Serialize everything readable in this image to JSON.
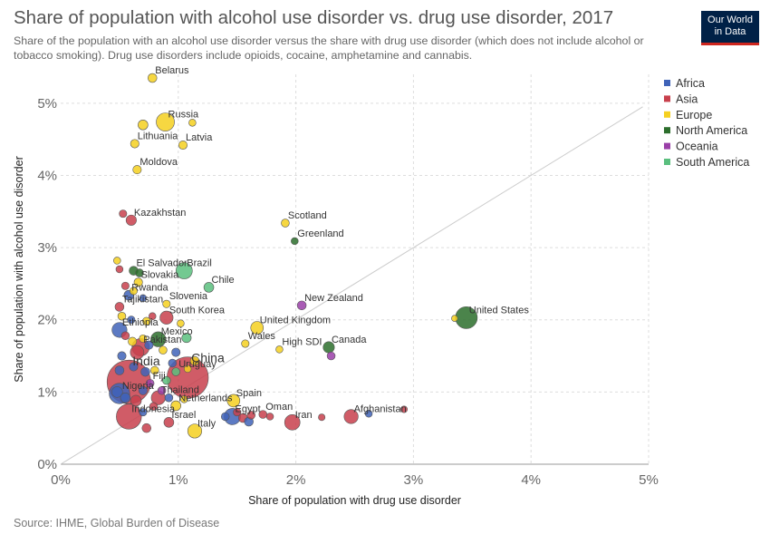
{
  "header": {
    "title": "Share of population with alcohol use disorder vs. drug use disorder, 2017",
    "subtitle": "Share of the population with an alcohol use disorder versus the share with drug use disorder (which does not include alcohol or tobacco smoking). Drug use disorders include opioids, cocaine, amphetamine and cannabis."
  },
  "logo": {
    "line1": "Our World",
    "line2": "in Data"
  },
  "footer": {
    "source": "Source: IHME, Global Burden of Disease"
  },
  "colors": {
    "Africa": "#3f63b8",
    "Asia": "#c8404c",
    "Europe": "#f5d020",
    "North America": "#2c6e2c",
    "Oceania": "#9a3fa8",
    "South America": "#5abf7e"
  },
  "chart_data": {
    "type": "scatter",
    "title": "Share of population with alcohol use disorder vs. drug use disorder, 2017",
    "xlabel": "Share of population with drug use disorder",
    "ylabel": "Share of population with alcohol use disorder",
    "xlim": [
      0,
      5
    ],
    "ylim": [
      0,
      5.4
    ],
    "xticks": [
      "0%",
      "1%",
      "2%",
      "3%",
      "4%",
      "5%"
    ],
    "yticks": [
      "0%",
      "1%",
      "2%",
      "3%",
      "4%",
      "5%"
    ],
    "grid": true,
    "reference_line": "y = x",
    "legend": {
      "position": "right",
      "entries": [
        "Africa",
        "Asia",
        "Europe",
        "North America",
        "Oceania",
        "South America"
      ]
    },
    "points": [
      {
        "label": "Belarus",
        "x": 0.78,
        "y": 5.35,
        "continent": "Europe",
        "size": 1
      },
      {
        "label": "Russia",
        "x": 0.89,
        "y": 4.74,
        "continent": "Europe",
        "size": 3
      },
      {
        "label": "",
        "x": 0.7,
        "y": 4.7,
        "continent": "Europe",
        "size": 1.2
      },
      {
        "label": "",
        "x": 1.12,
        "y": 4.73,
        "continent": "Europe",
        "size": 0.6
      },
      {
        "label": "Lithuania",
        "x": 0.63,
        "y": 4.44,
        "continent": "Europe",
        "size": 0.9
      },
      {
        "label": "Latvia",
        "x": 1.04,
        "y": 4.42,
        "continent": "Europe",
        "size": 0.9
      },
      {
        "label": "Moldova",
        "x": 0.65,
        "y": 4.08,
        "continent": "Europe",
        "size": 0.9
      },
      {
        "label": "Kazakhstan",
        "x": 0.6,
        "y": 3.38,
        "continent": "Asia",
        "size": 1.3
      },
      {
        "label": "",
        "x": 0.53,
        "y": 3.47,
        "continent": "Asia",
        "size": 0.7
      },
      {
        "label": "Scotland",
        "x": 1.91,
        "y": 3.34,
        "continent": "Europe",
        "size": 0.8
      },
      {
        "label": "Greenland",
        "x": 1.99,
        "y": 3.09,
        "continent": "North America",
        "size": 0.6
      },
      {
        "label": "Brazil",
        "x": 1.05,
        "y": 2.68,
        "continent": "South America",
        "size": 2.6
      },
      {
        "label": "El Salvador",
        "x": 0.62,
        "y": 2.68,
        "continent": "North America",
        "size": 1
      },
      {
        "label": "Slovakia",
        "x": 0.66,
        "y": 2.52,
        "continent": "Europe",
        "size": 0.9
      },
      {
        "label": "Chile",
        "x": 1.26,
        "y": 2.45,
        "continent": "South America",
        "size": 1.2
      },
      {
        "label": "Rwanda",
        "x": 0.58,
        "y": 2.34,
        "continent": "Africa",
        "size": 1.2
      },
      {
        "label": "Slovenia",
        "x": 0.9,
        "y": 2.22,
        "continent": "Europe",
        "size": 0.7
      },
      {
        "label": "New Zealand",
        "x": 2.05,
        "y": 2.2,
        "continent": "Oceania",
        "size": 1
      },
      {
        "label": "Tajikistan",
        "x": 0.5,
        "y": 2.18,
        "continent": "Asia",
        "size": 1
      },
      {
        "label": "South Korea",
        "x": 0.9,
        "y": 2.03,
        "continent": "Asia",
        "size": 1.9
      },
      {
        "label": "United States",
        "x": 3.45,
        "y": 2.03,
        "continent": "North America",
        "size": 3.8
      },
      {
        "label": "",
        "x": 3.35,
        "y": 2.02,
        "continent": "Europe",
        "size": 0.4
      },
      {
        "label": "Ethiopia",
        "x": 0.5,
        "y": 1.86,
        "continent": "Africa",
        "size": 2.3
      },
      {
        "label": "United Kingdom",
        "x": 1.67,
        "y": 1.89,
        "continent": "Europe",
        "size": 1.8
      },
      {
        "label": "Mexico",
        "x": 0.83,
        "y": 1.73,
        "continent": "North America",
        "size": 2.3
      },
      {
        "label": "Wales",
        "x": 1.57,
        "y": 1.67,
        "continent": "Europe",
        "size": 0.7
      },
      {
        "label": "Pakistan",
        "x": 0.68,
        "y": 1.62,
        "continent": "Asia",
        "size": 2.8
      },
      {
        "label": "Canada",
        "x": 2.28,
        "y": 1.62,
        "continent": "North America",
        "size": 1.5
      },
      {
        "label": "High SDI",
        "x": 1.86,
        "y": 1.59,
        "continent": "Europe",
        "size": 0.6
      },
      {
        "label": "",
        "x": 2.3,
        "y": 1.5,
        "continent": "Oceania",
        "size": 0.8
      },
      {
        "label": "",
        "x": 0.65,
        "y": 1.55,
        "continent": "Asia",
        "size": 2
      },
      {
        "label": "",
        "x": 0.98,
        "y": 1.55,
        "continent": "Africa",
        "size": 0.9
      },
      {
        "label": "India",
        "x": 0.58,
        "y": 1.14,
        "continent": "Asia",
        "size": 8.5
      },
      {
        "label": "China",
        "x": 1.08,
        "y": 1.2,
        "continent": "Asia",
        "size": 8
      },
      {
        "label": "Uruguay",
        "x": 0.98,
        "y": 1.28,
        "continent": "South America",
        "size": 0.8
      },
      {
        "label": "Fiji",
        "x": 0.76,
        "y": 1.12,
        "continent": "Oceania",
        "size": 0.8
      },
      {
        "label": "Nigeria",
        "x": 0.5,
        "y": 0.98,
        "continent": "Africa",
        "size": 3.5
      },
      {
        "label": "Thailand",
        "x": 0.83,
        "y": 0.92,
        "continent": "Asia",
        "size": 2.1
      },
      {
        "label": "Spain",
        "x": 1.47,
        "y": 0.88,
        "continent": "Europe",
        "size": 1.8
      },
      {
        "label": "Netherlands",
        "x": 0.98,
        "y": 0.81,
        "continent": "Europe",
        "size": 1.2
      },
      {
        "label": "Indonesia",
        "x": 0.58,
        "y": 0.66,
        "continent": "Asia",
        "size": 4.5
      },
      {
        "label": "Egypt",
        "x": 1.46,
        "y": 0.66,
        "continent": "Africa",
        "size": 2.6
      },
      {
        "label": "Oman",
        "x": 1.72,
        "y": 0.69,
        "continent": "Asia",
        "size": 0.8
      },
      {
        "label": "Iran",
        "x": 1.97,
        "y": 0.58,
        "continent": "Asia",
        "size": 2.4
      },
      {
        "label": "Afghanistan",
        "x": 2.47,
        "y": 0.66,
        "continent": "Asia",
        "size": 2.1
      },
      {
        "label": "",
        "x": 2.92,
        "y": 0.76,
        "continent": "Asia",
        "size": 0.5
      },
      {
        "label": "Israel",
        "x": 0.92,
        "y": 0.58,
        "continent": "Asia",
        "size": 1.2
      },
      {
        "label": "Italy",
        "x": 1.14,
        "y": 0.46,
        "continent": "Europe",
        "size": 2.1
      },
      {
        "label": "",
        "x": 0.73,
        "y": 0.5,
        "continent": "Asia",
        "size": 1
      },
      {
        "label": "",
        "x": 0.48,
        "y": 2.82,
        "continent": "Europe",
        "size": 0.6
      },
      {
        "label": "",
        "x": 0.5,
        "y": 2.7,
        "continent": "Asia",
        "size": 0.6
      },
      {
        "label": "",
        "x": 0.67,
        "y": 2.65,
        "continent": "North America",
        "size": 0.8
      },
      {
        "label": "",
        "x": 0.55,
        "y": 2.47,
        "continent": "Asia",
        "size": 0.7
      },
      {
        "label": "",
        "x": 0.62,
        "y": 2.4,
        "continent": "Europe",
        "size": 0.7
      },
      {
        "label": "",
        "x": 0.7,
        "y": 2.3,
        "continent": "Africa",
        "size": 0.6
      },
      {
        "label": "",
        "x": 0.52,
        "y": 2.05,
        "continent": "Europe",
        "size": 0.8
      },
      {
        "label": "",
        "x": 0.73,
        "y": 1.98,
        "continent": "Europe",
        "size": 0.8
      },
      {
        "label": "",
        "x": 0.6,
        "y": 2.0,
        "continent": "Africa",
        "size": 0.7
      },
      {
        "label": "",
        "x": 0.78,
        "y": 2.05,
        "continent": "Asia",
        "size": 0.6
      },
      {
        "label": "",
        "x": 0.55,
        "y": 1.78,
        "continent": "Asia",
        "size": 0.8
      },
      {
        "label": "",
        "x": 0.61,
        "y": 1.7,
        "continent": "Europe",
        "size": 0.9
      },
      {
        "label": "",
        "x": 0.7,
        "y": 1.74,
        "continent": "Europe",
        "size": 0.7
      },
      {
        "label": "",
        "x": 0.75,
        "y": 1.65,
        "continent": "Africa",
        "size": 0.9
      },
      {
        "label": "",
        "x": 0.87,
        "y": 1.58,
        "continent": "Europe",
        "size": 0.8
      },
      {
        "label": "",
        "x": 1.07,
        "y": 1.75,
        "continent": "South America",
        "size": 1.1
      },
      {
        "label": "",
        "x": 1.02,
        "y": 1.95,
        "continent": "Europe",
        "size": 0.6
      },
      {
        "label": "",
        "x": 1.14,
        "y": 1.43,
        "continent": "Europe",
        "size": 1
      },
      {
        "label": "",
        "x": 0.95,
        "y": 1.4,
        "continent": "Africa",
        "size": 0.8
      },
      {
        "label": "",
        "x": 0.52,
        "y": 1.5,
        "continent": "Africa",
        "size": 0.9
      },
      {
        "label": "",
        "x": 0.5,
        "y": 1.3,
        "continent": "Africa",
        "size": 1
      },
      {
        "label": "",
        "x": 0.62,
        "y": 1.35,
        "continent": "Africa",
        "size": 0.9
      },
      {
        "label": "",
        "x": 0.72,
        "y": 1.28,
        "continent": "Africa",
        "size": 1
      },
      {
        "label": "",
        "x": 0.8,
        "y": 1.3,
        "continent": "Europe",
        "size": 0.8
      },
      {
        "label": "",
        "x": 0.9,
        "y": 1.16,
        "continent": "South America",
        "size": 0.8
      },
      {
        "label": "",
        "x": 0.48,
        "y": 1.0,
        "continent": "Africa",
        "size": 1.4
      },
      {
        "label": "",
        "x": 0.55,
        "y": 0.92,
        "continent": "Africa",
        "size": 1.2
      },
      {
        "label": "",
        "x": 0.64,
        "y": 0.88,
        "continent": "Asia",
        "size": 1.4
      },
      {
        "label": "",
        "x": 0.7,
        "y": 1.02,
        "continent": "Africa",
        "size": 0.9
      },
      {
        "label": "",
        "x": 0.86,
        "y": 1.02,
        "continent": "Oceania",
        "size": 0.8
      },
      {
        "label": "",
        "x": 0.92,
        "y": 0.92,
        "continent": "Africa",
        "size": 0.8
      },
      {
        "label": "",
        "x": 0.79,
        "y": 0.8,
        "continent": "Asia",
        "size": 0.8
      },
      {
        "label": "",
        "x": 0.7,
        "y": 0.72,
        "continent": "Africa",
        "size": 0.7
      },
      {
        "label": "",
        "x": 1.4,
        "y": 0.66,
        "continent": "Africa",
        "size": 0.8
      },
      {
        "label": "",
        "x": 1.55,
        "y": 0.64,
        "continent": "Asia",
        "size": 1
      },
      {
        "label": "",
        "x": 1.6,
        "y": 0.59,
        "continent": "Africa",
        "size": 1
      },
      {
        "label": "",
        "x": 1.62,
        "y": 0.68,
        "continent": "Asia",
        "size": 0.8
      },
      {
        "label": "",
        "x": 1.5,
        "y": 0.72,
        "continent": "Asia",
        "size": 0.7
      },
      {
        "label": "",
        "x": 1.78,
        "y": 0.66,
        "continent": "Asia",
        "size": 0.6
      },
      {
        "label": "",
        "x": 2.22,
        "y": 0.65,
        "continent": "Asia",
        "size": 0.5
      },
      {
        "label": "",
        "x": 2.62,
        "y": 0.7,
        "continent": "Africa",
        "size": 0.6
      },
      {
        "label": "",
        "x": 1.05,
        "y": 0.9,
        "continent": "Europe",
        "size": 0.6
      },
      {
        "label": "",
        "x": 1.08,
        "y": 1.32,
        "continent": "Europe",
        "size": 0.6
      }
    ]
  }
}
